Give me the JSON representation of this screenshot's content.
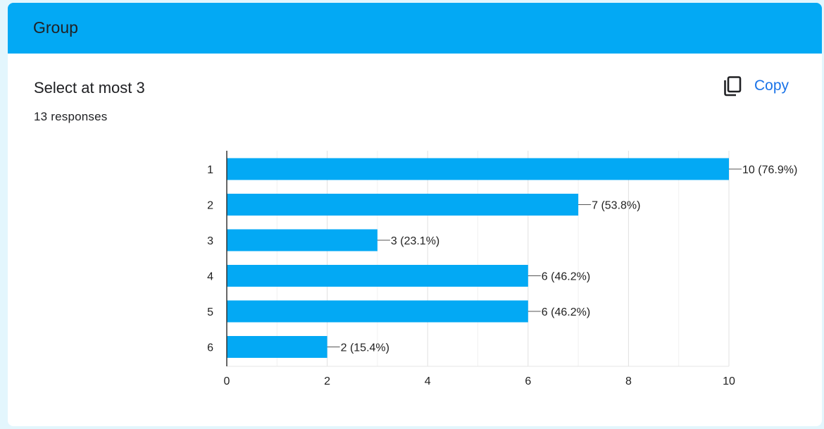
{
  "header": {
    "title": "Group"
  },
  "question": {
    "title": "Select at most 3",
    "responses": "13 responses"
  },
  "copy_button": {
    "label": "Copy",
    "icon": "copy-icon"
  },
  "colors": {
    "header_bg": "#03a9f4",
    "bar": "#03a9f4",
    "copy_text": "#1a73e8",
    "page_bg": "#e3f6fd"
  },
  "chart_data": {
    "type": "bar",
    "orientation": "horizontal",
    "categories": [
      "1",
      "2",
      "3",
      "4",
      "5",
      "6"
    ],
    "values": [
      10,
      7,
      3,
      6,
      6,
      2
    ],
    "labels": [
      "10 (76.9%)",
      "7 (53.8%)",
      "3 (23.1%)",
      "6 (46.2%)",
      "6 (46.2%)",
      "2 (15.4%)"
    ],
    "xlim": [
      0,
      10
    ],
    "xticks": [
      "0",
      "2",
      "4",
      "6",
      "8",
      "10"
    ],
    "grid": true,
    "title": "",
    "xlabel": "",
    "ylabel": ""
  }
}
